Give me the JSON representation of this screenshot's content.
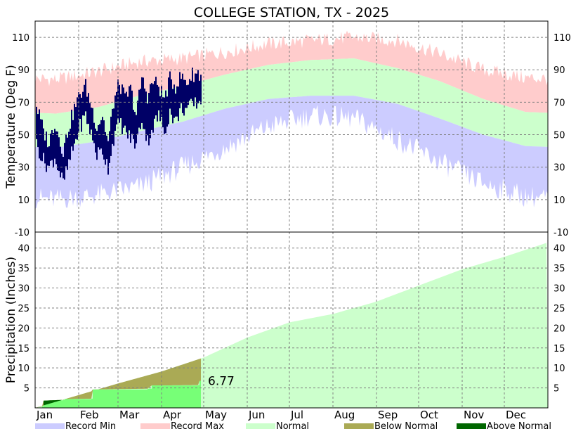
{
  "title": "COLLEGE STATION, TX - 2025",
  "chart_data": [
    {
      "type": "area",
      "ylabel": "Temperature (Deg F)",
      "ylim": [
        -10,
        120
      ],
      "yticks": [
        -10,
        10,
        30,
        50,
        70,
        90,
        110
      ],
      "grid": true,
      "months": [
        "Jan",
        "Feb",
        "Mar",
        "Apr",
        "May",
        "Jun",
        "Jul",
        "Aug",
        "Sep",
        "Oct",
        "Nov",
        "Dec"
      ],
      "monthly_normals": {
        "normal_high": [
          63,
          67,
          74,
          80,
          87,
          93,
          96,
          97,
          91,
          83,
          72,
          64
        ],
        "normal_low": [
          42,
          46,
          52,
          58,
          66,
          72,
          74,
          74,
          69,
          60,
          50,
          43
        ],
        "record_high": [
          84,
          89,
          95,
          97,
          101,
          106,
          108,
          110,
          108,
          100,
          90,
          85
        ],
        "record_low": [
          10,
          13,
          18,
          30,
          42,
          55,
          62,
          60,
          47,
          33,
          20,
          12
        ]
      },
      "observed_2025": {
        "end_day": 118,
        "points": [
          {
            "day": 1,
            "high": 68,
            "low": 44
          },
          {
            "day": 6,
            "high": 52,
            "low": 34
          },
          {
            "day": 10,
            "high": 45,
            "low": 30
          },
          {
            "day": 14,
            "high": 58,
            "low": 36
          },
          {
            "day": 20,
            "high": 40,
            "low": 20
          },
          {
            "day": 24,
            "high": 55,
            "low": 32
          },
          {
            "day": 28,
            "high": 66,
            "low": 44
          },
          {
            "day": 32,
            "high": 75,
            "low": 55
          },
          {
            "day": 36,
            "high": 80,
            "low": 62
          },
          {
            "day": 40,
            "high": 68,
            "low": 50
          },
          {
            "day": 44,
            "high": 55,
            "low": 38
          },
          {
            "day": 48,
            "high": 62,
            "low": 40
          },
          {
            "day": 52,
            "high": 45,
            "low": 30
          },
          {
            "day": 56,
            "high": 70,
            "low": 48
          },
          {
            "day": 60,
            "high": 82,
            "low": 58
          },
          {
            "day": 64,
            "high": 72,
            "low": 52
          },
          {
            "day": 68,
            "high": 78,
            "low": 48
          },
          {
            "day": 72,
            "high": 62,
            "low": 44
          },
          {
            "day": 76,
            "high": 85,
            "low": 60
          },
          {
            "day": 80,
            "high": 74,
            "low": 46
          },
          {
            "day": 84,
            "high": 83,
            "low": 55
          },
          {
            "day": 88,
            "high": 80,
            "low": 62
          },
          {
            "day": 92,
            "high": 72,
            "low": 52
          },
          {
            "day": 96,
            "high": 84,
            "low": 64
          },
          {
            "day": 100,
            "high": 80,
            "low": 58
          },
          {
            "day": 104,
            "high": 86,
            "low": 66
          },
          {
            "day": 108,
            "high": 82,
            "low": 66
          },
          {
            "day": 112,
            "high": 87,
            "low": 68
          },
          {
            "day": 116,
            "high": 88,
            "low": 70
          },
          {
            "day": 118,
            "high": 86,
            "low": 70
          }
        ]
      }
    },
    {
      "type": "area",
      "ylabel": "Precipitation (Inches)",
      "ylim": [
        0,
        44
      ],
      "yticks": [
        5,
        10,
        15,
        20,
        25,
        30,
        35,
        40
      ],
      "grid": true,
      "cumulative_normal": {
        "day": [
          0,
          31,
          59,
          90,
          120,
          151,
          181,
          212,
          243,
          273,
          304,
          334,
          365
        ],
        "value": [
          0,
          3.2,
          6.1,
          9.1,
          12.6,
          17.6,
          21.4,
          23.5,
          26.6,
          30.6,
          34.7,
          37.8,
          41.4
        ]
      },
      "observed_cumulative": {
        "day": [
          0,
          5,
          6,
          12,
          20,
          21,
          40,
          41,
          80,
          83,
          116,
          117,
          118
        ],
        "value": [
          0,
          0.4,
          1.8,
          1.9,
          2.0,
          2.2,
          2.3,
          4.6,
          4.8,
          5.6,
          5.7,
          6.77,
          6.77
        ]
      },
      "annotation": "6.77"
    }
  ],
  "legend": [
    {
      "label": "Record Min",
      "color": "#ccccff"
    },
    {
      "label": "Record Max",
      "color": "#ffcccc"
    },
    {
      "label": "Normal",
      "color": "#ccffcc"
    },
    {
      "label": "Below Normal",
      "color": "#aaaa55"
    },
    {
      "label": "Above Normal",
      "color": "#006600"
    }
  ],
  "colors": {
    "record_min": "#ccccff",
    "record_max": "#ffcccc",
    "normal": "#ccffcc",
    "observed_temp": "#000066",
    "observed_precip": "#77ff77",
    "below_normal": "#aaaa55",
    "above_normal": "#006600"
  }
}
